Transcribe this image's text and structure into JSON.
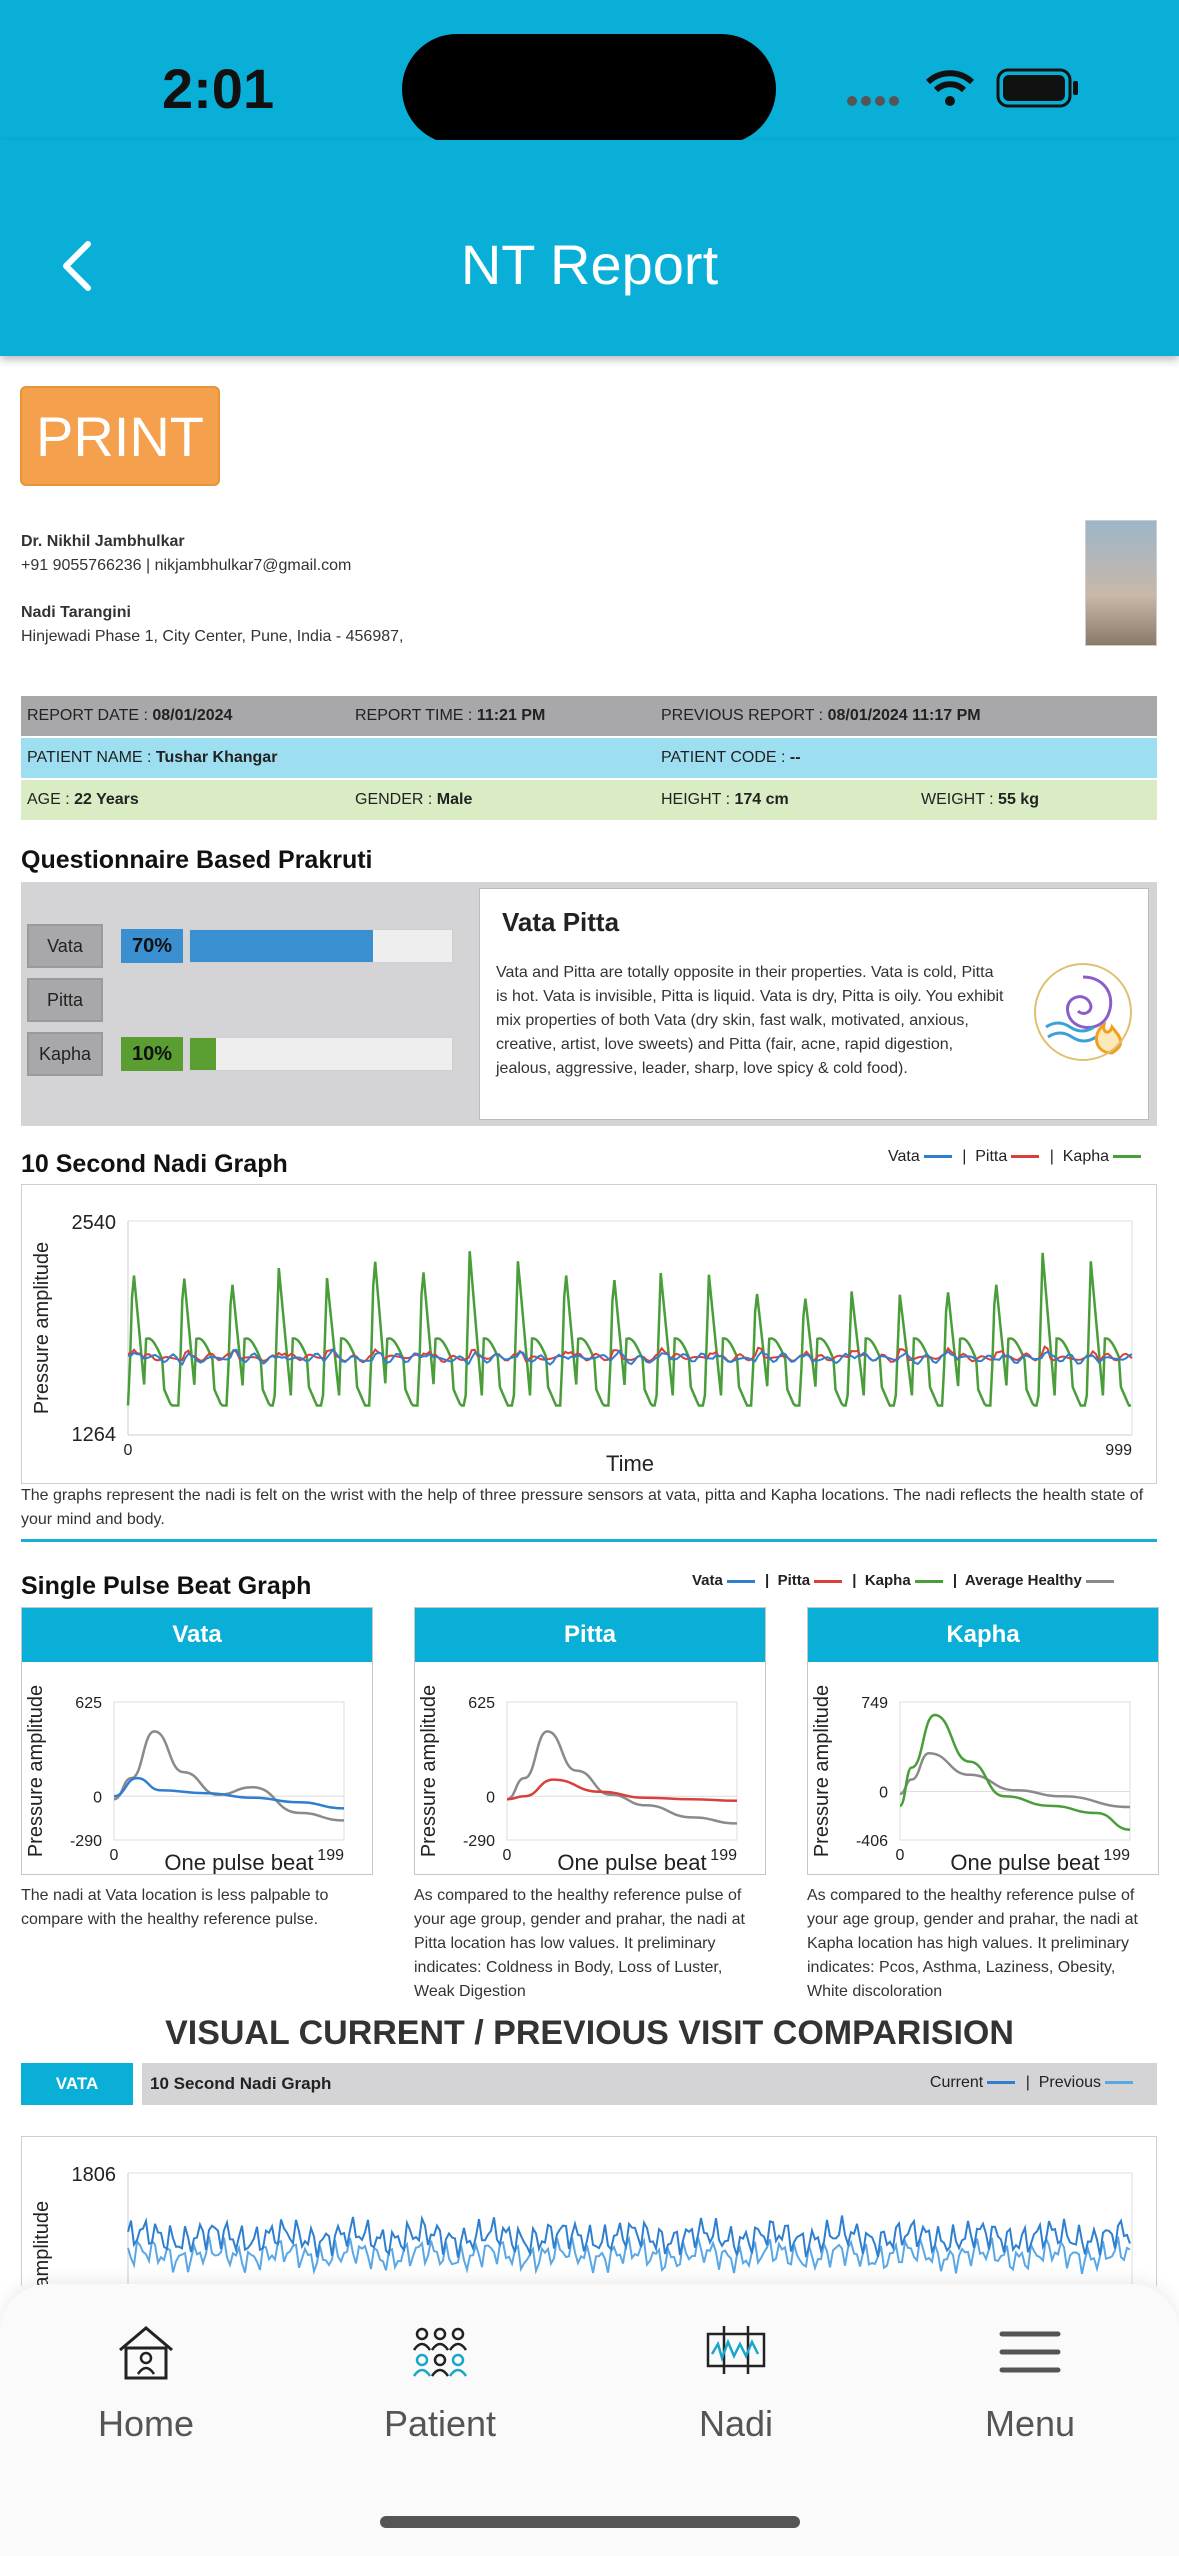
{
  "status": {
    "time": "2:01"
  },
  "header": {
    "title": "NT Report"
  },
  "print_label": "PRINT",
  "doctor": {
    "name": "Dr. Nikhil Jambhulkar",
    "contact": "+91 9055766236 | nikjambhulkar7@gmail.com",
    "clinic": "Nadi Tarangini",
    "address": "Hinjewadi Phase 1, City Center, Pune, India - 456987,"
  },
  "report": {
    "date_label": "REPORT DATE :",
    "date": "08/01/2024",
    "time_label": "REPORT TIME :",
    "time": "11:21 PM",
    "prev_label": "PREVIOUS REPORT :",
    "prev": "08/01/2024 11:17 PM",
    "patient_label": "PATIENT NAME :",
    "patient": "Tushar Khangar",
    "code_label": "PATIENT CODE :",
    "code": "--",
    "age_label": "AGE :",
    "age": "22 Years",
    "gender_label": "GENDER :",
    "gender": "Male",
    "height_label": "HEIGHT :",
    "height": "174 cm",
    "weight_label": "WEIGHT :",
    "weight": "55 kg"
  },
  "prakruti": {
    "title": "Questionnaire Based Prakruti",
    "items": [
      {
        "label": "Vata",
        "pct_text": "70%",
        "value": 0.7,
        "color": "#3a8fd1"
      },
      {
        "label": "Pitta",
        "pct_text": "",
        "value": 0,
        "color": "#d9403a"
      },
      {
        "label": "Kapha",
        "pct_text": "10%",
        "value": 0.1,
        "color": "#5a9e32"
      }
    ],
    "result_title": "Vata Pitta",
    "result_text": "Vata and Pitta are totally opposite in their properties. Vata is cold, Pitta is hot. Vata is invisible, Pitta is liquid. Vata is dry, Pitta is oily. You exhibit mix properties of both Vata (dry skin, fast walk, motivated, anxious, creative, artist, love sweets) and Pitta (fair, acne, rapid digestion, jealous, aggressive, leader, sharp, love spicy & cold food).",
    "icon": "vata-pitta-icon"
  },
  "nadi_graph": {
    "title": "10 Second Nadi Graph",
    "legend": [
      "Vata",
      "Pitta",
      "Kapha"
    ],
    "sep": "|",
    "caption": "The graphs represent the nadi is felt on the wrist with the help of three pressure sensors at vata, pitta and Kapha locations. The nadi reflects the health state of your mind and body."
  },
  "pulse": {
    "title": "Single Pulse Beat Graph",
    "legend": [
      "Vata",
      "Pitta",
      "Kapha",
      "Average Healthy"
    ],
    "cards": [
      {
        "name": "Vata",
        "ymax": "625",
        "ymin": "-290",
        "zero": "0",
        "x0": "0",
        "x1": "199",
        "xlabel": "One pulse beat",
        "ylabel": "Pressure amplitude",
        "desc": "The nadi at Vata location is less palpable to compare with the healthy reference pulse."
      },
      {
        "name": "Pitta",
        "ymax": "625",
        "ymin": "-290",
        "zero": "0",
        "x0": "0",
        "x1": "199",
        "xlabel": "One pulse beat",
        "ylabel": "Pressure amplitude",
        "desc": "As compared to the healthy reference pulse of your age group, gender and prahar, the nadi at Pitta location has low values. It preliminary indicates: Coldness in Body, Loss of Luster, Weak Digestion"
      },
      {
        "name": "Kapha",
        "ymax": "749",
        "ymin": "-406",
        "zero": "0",
        "x0": "0",
        "x1": "199",
        "xlabel": "One pulse beat",
        "ylabel": "Pressure amplitude",
        "desc": "As compared to the healthy reference pulse of your age group, gender and prahar, the nadi at Kapha location has high values. It preliminary indicates: Pcos, Asthma, Laziness, Obesity, White discoloration"
      }
    ]
  },
  "comparison": {
    "title": "VISUAL CURRENT / PREVIOUS VISIT COMPARISION",
    "tag": "VATA",
    "graph_title": "10 Second Nadi Graph",
    "legend": [
      "Current",
      "Previous"
    ]
  },
  "tabs": [
    {
      "label": "Home",
      "icon": "home-icon"
    },
    {
      "label": "Patient",
      "icon": "patients-icon"
    },
    {
      "label": "Nadi",
      "icon": "nadi-icon"
    },
    {
      "label": "Menu",
      "icon": "menu-icon"
    }
  ],
  "chart_data": [
    {
      "type": "line",
      "title": "10 Second Nadi Graph",
      "xlabel": "Time",
      "ylabel": "Pressure amplitude",
      "xlim": [
        0,
        999
      ],
      "ylim": [
        1264,
        2540
      ],
      "series": [
        {
          "name": "Vata",
          "color": "#2f7fd0"
        },
        {
          "name": "Pitta",
          "color": "#d9403a"
        },
        {
          "name": "Kapha",
          "color": "#4a9e3a"
        }
      ],
      "kapha_peaks_x": [
        5,
        55,
        103,
        150,
        198,
        245,
        293,
        340,
        388,
        435,
        483,
        530,
        578,
        625,
        673,
        720,
        768,
        815,
        863,
        910,
        958
      ],
      "kapha_peak_y": [
        2280,
        2260,
        2220,
        2260,
        2200,
        2370,
        2300,
        2360,
        2300,
        2280,
        2250,
        2230,
        2220,
        2160,
        2130,
        2120,
        2100,
        2170,
        2220,
        2350,
        2300
      ],
      "kapha_trough_y": 1320,
      "vata_mean": 1720,
      "pitta_mean": 1725
    },
    {
      "type": "line",
      "title": "Vata",
      "xlabel": "One pulse beat",
      "ylabel": "Pressure amplitude",
      "xlim": [
        0,
        199
      ],
      "ylim": [
        -290,
        625
      ],
      "series": [
        {
          "name": "Vata",
          "x": [
            0,
            20,
            40,
            80,
            120,
            160,
            199
          ],
          "y": [
            0,
            120,
            40,
            20,
            -10,
            -40,
            -80
          ]
        },
        {
          "name": "Average Healthy",
          "x": [
            0,
            15,
            35,
            60,
            90,
            120,
            160,
            199
          ],
          "y": [
            -20,
            120,
            430,
            160,
            10,
            60,
            -110,
            -160
          ]
        }
      ]
    },
    {
      "type": "line",
      "title": "Pitta",
      "xlabel": "One pulse beat",
      "ylabel": "Pressure amplitude",
      "xlim": [
        0,
        199
      ],
      "ylim": [
        -290,
        625
      ],
      "series": [
        {
          "name": "Pitta",
          "x": [
            0,
            15,
            40,
            80,
            120,
            160,
            199
          ],
          "y": [
            -20,
            0,
            110,
            30,
            -10,
            -20,
            -30
          ]
        },
        {
          "name": "Average Healthy",
          "x": [
            0,
            15,
            35,
            60,
            90,
            120,
            160,
            199
          ],
          "y": [
            -20,
            120,
            430,
            170,
            10,
            -60,
            -140,
            -180
          ]
        }
      ]
    },
    {
      "type": "line",
      "title": "Kapha",
      "xlabel": "One pulse beat",
      "ylabel": "Pressure amplitude",
      "xlim": [
        0,
        199
      ],
      "ylim": [
        -406,
        749
      ],
      "series": [
        {
          "name": "Kapha",
          "x": [
            0,
            10,
            30,
            60,
            90,
            130,
            170,
            199
          ],
          "y": [
            -120,
            200,
            640,
            250,
            -40,
            -120,
            -180,
            -320
          ]
        },
        {
          "name": "Average Healthy",
          "x": [
            0,
            10,
            25,
            60,
            100,
            140,
            199
          ],
          "y": [
            -20,
            100,
            320,
            140,
            10,
            -40,
            -130
          ]
        }
      ]
    },
    {
      "type": "line",
      "title": "10 Second Nadi Graph",
      "ylabel": "Pressure amplitude",
      "ylim_max": 1806,
      "series": [
        {
          "name": "Current",
          "color": "#2f7fd0"
        },
        {
          "name": "Previous",
          "color": "#5aa7e6"
        }
      ]
    }
  ]
}
